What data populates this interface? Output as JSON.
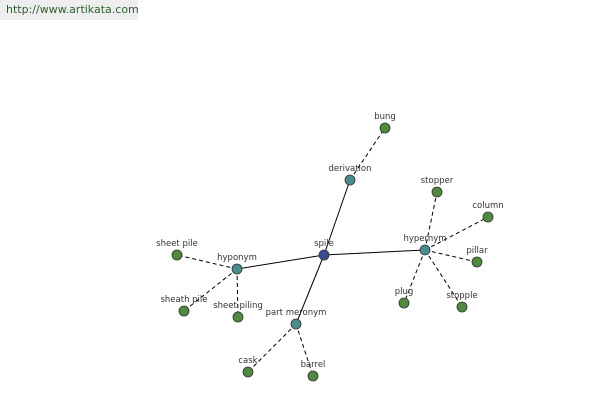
{
  "header": {
    "url": "http://www.artikata.com"
  },
  "nodes": [
    {
      "label": "spile"
    },
    {
      "label": "derivation"
    },
    {
      "label": "bung"
    },
    {
      "label": "hyponym"
    },
    {
      "label": "sheet pile"
    },
    {
      "label": "sheath pile"
    },
    {
      "label": "sheet piling"
    },
    {
      "label": "hypernym"
    },
    {
      "label": "stopper"
    },
    {
      "label": "column"
    },
    {
      "label": "pillar"
    },
    {
      "label": "stopple"
    },
    {
      "label": "plug"
    },
    {
      "label": "part meronym"
    },
    {
      "label": "cask"
    },
    {
      "label": "barrel"
    }
  ]
}
